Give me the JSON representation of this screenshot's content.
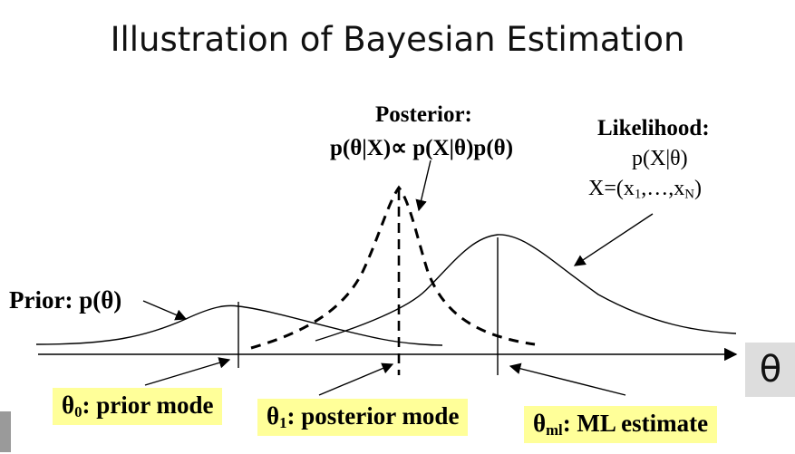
{
  "title": "Illustration of Bayesian Estimation",
  "prior": {
    "label": "Prior: p(θ)"
  },
  "posterior": {
    "title": "Posterior:",
    "formula": "p(θ|X)∝ p(X|θ)p(θ)"
  },
  "likelihood": {
    "title": "Likelihood:",
    "formula": "p(X|θ)",
    "data_def": "X=(x",
    "sub_1": "1",
    "data_mid": ",…,x",
    "sub_N": "N",
    "data_end": ")"
  },
  "labels": {
    "prior_mode": {
      "symbol": "θ",
      "sub": "0",
      "text": ": prior mode"
    },
    "posterior_mode": {
      "symbol": "θ",
      "sub": "1",
      "text": ": posterior mode"
    },
    "ml_estimate": {
      "symbol": "θ",
      "sub": "ml",
      "text": ": ML estimate"
    }
  },
  "axis": {
    "symbol": "θ"
  },
  "colors": {
    "box_fill": "#ffff99",
    "curve": "#000000",
    "axis_box": "#dddddd"
  }
}
